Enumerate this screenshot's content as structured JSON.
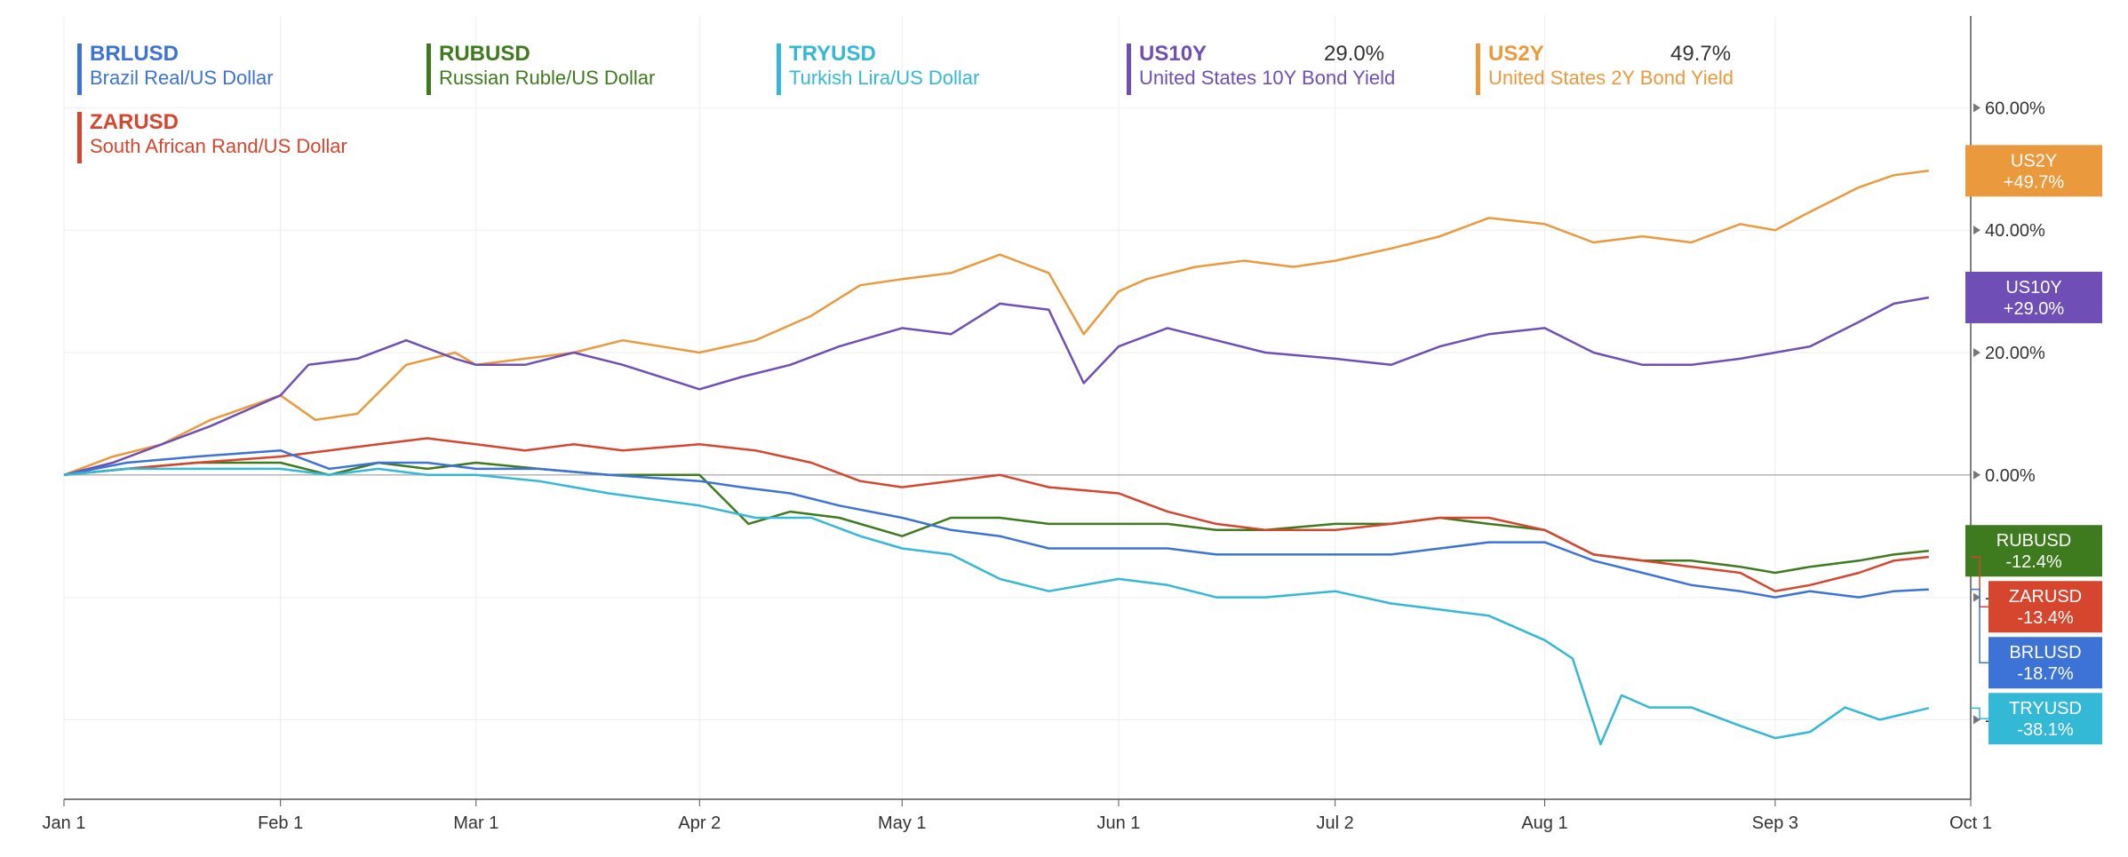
{
  "legend": [
    {
      "symbol": "BRLUSD",
      "description": "Brazil Real/US Dollar",
      "color": "#3d73d6",
      "value": ""
    },
    {
      "symbol": "RUBUSD",
      "description": "Russian Ruble/US Dollar",
      "color": "#3e7a1e",
      "value": ""
    },
    {
      "symbol": "TRYUSD",
      "description": "Turkish Lira/US Dollar",
      "color": "#33b8d6",
      "value": ""
    },
    {
      "symbol": "US10Y",
      "description": "United States 10Y Bond Yield",
      "color": "#6f4fb5",
      "value": "29.0%"
    },
    {
      "symbol": "US2Y",
      "description": "United States 2Y Bond Yield",
      "color": "#ea9a3c",
      "value": "49.7%"
    },
    {
      "symbol": "ZARUSD",
      "description": "South African Rand/US Dollar",
      "color": "#d6452e",
      "value": ""
    }
  ],
  "chart_data": {
    "type": "line",
    "x_ticks": [
      "Jan 1",
      "Feb 1",
      "Mar 1",
      "Apr 2",
      "May 1",
      "Jun 1",
      "Jul 2",
      "Aug 1",
      "Sep 3",
      "Oct 1"
    ],
    "y_ticks": [
      "60.00%",
      "40.00%",
      "20.00%",
      "0.00%",
      "-20.00%",
      "-40.00%"
    ],
    "ylim": [
      -53,
      75
    ],
    "grid": true,
    "series": [
      {
        "name": "US2Y",
        "color": "#ea9a3c",
        "end_label": "US2Y",
        "end_value": "+49.7%",
        "points": [
          [
            "Jan 1",
            0
          ],
          [
            "Jan 8",
            3
          ],
          [
            "Jan 15",
            5
          ],
          [
            "Jan 22",
            9
          ],
          [
            "Feb 1",
            13
          ],
          [
            "Feb 6",
            9
          ],
          [
            "Feb 12",
            10
          ],
          [
            "Feb 19",
            18
          ],
          [
            "Feb 26",
            20
          ],
          [
            "Mar 1",
            18
          ],
          [
            "Mar 8",
            19
          ],
          [
            "Mar 15",
            20
          ],
          [
            "Mar 22",
            22
          ],
          [
            "Apr 2",
            20
          ],
          [
            "Apr 10",
            22
          ],
          [
            "Apr 18",
            26
          ],
          [
            "Apr 25",
            31
          ],
          [
            "May 1",
            32
          ],
          [
            "May 8",
            33
          ],
          [
            "May 15",
            36
          ],
          [
            "May 22",
            33
          ],
          [
            "May 27",
            23
          ],
          [
            "Jun 1",
            30
          ],
          [
            "Jun 5",
            32
          ],
          [
            "Jun 12",
            34
          ],
          [
            "Jun 19",
            35
          ],
          [
            "Jun 26",
            34
          ],
          [
            "Jul 2",
            35
          ],
          [
            "Jul 10",
            37
          ],
          [
            "Jul 17",
            39
          ],
          [
            "Jul 24",
            42
          ],
          [
            "Aug 1",
            41
          ],
          [
            "Aug 8",
            38
          ],
          [
            "Aug 15",
            39
          ],
          [
            "Aug 22",
            38
          ],
          [
            "Aug 29",
            41
          ],
          [
            "Sep 3",
            40
          ],
          [
            "Sep 8",
            43
          ],
          [
            "Sep 15",
            47
          ],
          [
            "Sep 20",
            49
          ],
          [
            "Sep 25",
            49.7
          ]
        ]
      },
      {
        "name": "US10Y",
        "color": "#6f4fb5",
        "end_label": "US10Y",
        "end_value": "+29.0%",
        "points": [
          [
            "Jan 1",
            0
          ],
          [
            "Jan 8",
            2
          ],
          [
            "Jan 15",
            5
          ],
          [
            "Jan 22",
            8
          ],
          [
            "Feb 1",
            13
          ],
          [
            "Feb 5",
            18
          ],
          [
            "Feb 12",
            19
          ],
          [
            "Feb 19",
            22
          ],
          [
            "Feb 26",
            19
          ],
          [
            "Mar 1",
            18
          ],
          [
            "Mar 8",
            18
          ],
          [
            "Mar 15",
            20
          ],
          [
            "Mar 22",
            18
          ],
          [
            "Apr 2",
            14
          ],
          [
            "Apr 8",
            16
          ],
          [
            "Apr 15",
            18
          ],
          [
            "Apr 22",
            21
          ],
          [
            "May 1",
            24
          ],
          [
            "May 8",
            23
          ],
          [
            "May 15",
            28
          ],
          [
            "May 22",
            27
          ],
          [
            "May 27",
            15
          ],
          [
            "Jun 1",
            21
          ],
          [
            "Jun 8",
            24
          ],
          [
            "Jun 15",
            22
          ],
          [
            "Jun 22",
            20
          ],
          [
            "Jul 2",
            19
          ],
          [
            "Jul 10",
            18
          ],
          [
            "Jul 17",
            21
          ],
          [
            "Jul 24",
            23
          ],
          [
            "Aug 1",
            24
          ],
          [
            "Aug 8",
            20
          ],
          [
            "Aug 15",
            18
          ],
          [
            "Aug 22",
            18
          ],
          [
            "Aug 29",
            19
          ],
          [
            "Sep 3",
            20
          ],
          [
            "Sep 8",
            21
          ],
          [
            "Sep 15",
            25
          ],
          [
            "Sep 20",
            28
          ],
          [
            "Sep 25",
            29
          ]
        ]
      },
      {
        "name": "RUBUSD",
        "color": "#3e7a1e",
        "end_label": "RUBUSD",
        "end_value": "-12.4%",
        "points": [
          [
            "Jan 1",
            0
          ],
          [
            "Jan 10",
            1
          ],
          [
            "Jan 20",
            2
          ],
          [
            "Feb 1",
            2
          ],
          [
            "Feb 8",
            0
          ],
          [
            "Feb 15",
            2
          ],
          [
            "Feb 22",
            1
          ],
          [
            "Mar 1",
            2
          ],
          [
            "Mar 10",
            1
          ],
          [
            "Mar 20",
            0
          ],
          [
            "Apr 2",
            0
          ],
          [
            "Apr 9",
            -8
          ],
          [
            "Apr 15",
            -6
          ],
          [
            "Apr 22",
            -7
          ],
          [
            "May 1",
            -10
          ],
          [
            "May 8",
            -7
          ],
          [
            "May 15",
            -7
          ],
          [
            "May 22",
            -8
          ],
          [
            "Jun 1",
            -8
          ],
          [
            "Jun 8",
            -8
          ],
          [
            "Jun 15",
            -9
          ],
          [
            "Jun 22",
            -9
          ],
          [
            "Jul 2",
            -8
          ],
          [
            "Jul 10",
            -8
          ],
          [
            "Jul 17",
            -7
          ],
          [
            "Jul 24",
            -8
          ],
          [
            "Aug 1",
            -9
          ],
          [
            "Aug 8",
            -13
          ],
          [
            "Aug 15",
            -14
          ],
          [
            "Aug 22",
            -14
          ],
          [
            "Aug 29",
            -15
          ],
          [
            "Sep 3",
            -16
          ],
          [
            "Sep 8",
            -15
          ],
          [
            "Sep 15",
            -14
          ],
          [
            "Sep 20",
            -13
          ],
          [
            "Sep 25",
            -12.4
          ]
        ]
      },
      {
        "name": "ZARUSD",
        "color": "#d6452e",
        "end_label": "ZARUSD",
        "end_value": "-13.4%",
        "points": [
          [
            "Jan 1",
            0
          ],
          [
            "Jan 10",
            1
          ],
          [
            "Jan 20",
            2
          ],
          [
            "Feb 1",
            3
          ],
          [
            "Feb 8",
            4
          ],
          [
            "Feb 15",
            5
          ],
          [
            "Feb 22",
            6
          ],
          [
            "Mar 1",
            5
          ],
          [
            "Mar 8",
            4
          ],
          [
            "Mar 15",
            5
          ],
          [
            "Mar 22",
            4
          ],
          [
            "Apr 2",
            5
          ],
          [
            "Apr 10",
            4
          ],
          [
            "Apr 18",
            2
          ],
          [
            "Apr 25",
            -1
          ],
          [
            "May 1",
            -2
          ],
          [
            "May 8",
            -1
          ],
          [
            "May 15",
            0
          ],
          [
            "May 22",
            -2
          ],
          [
            "Jun 1",
            -3
          ],
          [
            "Jun 8",
            -6
          ],
          [
            "Jun 15",
            -8
          ],
          [
            "Jun 22",
            -9
          ],
          [
            "Jul 2",
            -9
          ],
          [
            "Jul 10",
            -8
          ],
          [
            "Jul 17",
            -7
          ],
          [
            "Jul 24",
            -7
          ],
          [
            "Aug 1",
            -9
          ],
          [
            "Aug 8",
            -13
          ],
          [
            "Aug 15",
            -14
          ],
          [
            "Aug 22",
            -15
          ],
          [
            "Aug 29",
            -16
          ],
          [
            "Sep 3",
            -19
          ],
          [
            "Sep 8",
            -18
          ],
          [
            "Sep 15",
            -16
          ],
          [
            "Sep 20",
            -14
          ],
          [
            "Sep 25",
            -13.4
          ]
        ]
      },
      {
        "name": "BRLUSD",
        "color": "#3d73d6",
        "end_label": "BRLUSD",
        "end_value": "-18.7%",
        "points": [
          [
            "Jan 1",
            0
          ],
          [
            "Jan 10",
            2
          ],
          [
            "Jan 20",
            3
          ],
          [
            "Feb 1",
            4
          ],
          [
            "Feb 8",
            1
          ],
          [
            "Feb 15",
            2
          ],
          [
            "Feb 22",
            2
          ],
          [
            "Mar 1",
            1
          ],
          [
            "Mar 10",
            1
          ],
          [
            "Mar 20",
            0
          ],
          [
            "Apr 2",
            -1
          ],
          [
            "Apr 8",
            -2
          ],
          [
            "Apr 15",
            -3
          ],
          [
            "Apr 22",
            -5
          ],
          [
            "May 1",
            -7
          ],
          [
            "May 8",
            -9
          ],
          [
            "May 15",
            -10
          ],
          [
            "May 22",
            -12
          ],
          [
            "Jun 1",
            -12
          ],
          [
            "Jun 8",
            -12
          ],
          [
            "Jun 15",
            -13
          ],
          [
            "Jun 22",
            -13
          ],
          [
            "Jul 2",
            -13
          ],
          [
            "Jul 10",
            -13
          ],
          [
            "Jul 17",
            -12
          ],
          [
            "Jul 24",
            -11
          ],
          [
            "Aug 1",
            -11
          ],
          [
            "Aug 8",
            -14
          ],
          [
            "Aug 15",
            -16
          ],
          [
            "Aug 22",
            -18
          ],
          [
            "Aug 29",
            -19
          ],
          [
            "Sep 3",
            -20
          ],
          [
            "Sep 8",
            -19
          ],
          [
            "Sep 15",
            -20
          ],
          [
            "Sep 20",
            -19
          ],
          [
            "Sep 25",
            -18.7
          ]
        ]
      },
      {
        "name": "TRYUSD",
        "color": "#33b8d6",
        "end_label": "TRYUSD",
        "end_value": "-38.1%",
        "points": [
          [
            "Jan 1",
            0
          ],
          [
            "Jan 10",
            1
          ],
          [
            "Jan 20",
            1
          ],
          [
            "Feb 1",
            1
          ],
          [
            "Feb 8",
            0
          ],
          [
            "Feb 15",
            1
          ],
          [
            "Feb 22",
            0
          ],
          [
            "Mar 1",
            0
          ],
          [
            "Mar 10",
            -1
          ],
          [
            "Mar 20",
            -3
          ],
          [
            "Apr 2",
            -5
          ],
          [
            "Apr 10",
            -7
          ],
          [
            "Apr 18",
            -7
          ],
          [
            "Apr 25",
            -10
          ],
          [
            "May 1",
            -12
          ],
          [
            "May 8",
            -13
          ],
          [
            "May 15",
            -17
          ],
          [
            "May 22",
            -19
          ],
          [
            "Jun 1",
            -17
          ],
          [
            "Jun 8",
            -18
          ],
          [
            "Jun 15",
            -20
          ],
          [
            "Jun 22",
            -20
          ],
          [
            "Jul 2",
            -19
          ],
          [
            "Jul 10",
            -21
          ],
          [
            "Jul 17",
            -22
          ],
          [
            "Jul 24",
            -23
          ],
          [
            "Aug 1",
            -27
          ],
          [
            "Aug 5",
            -30
          ],
          [
            "Aug 9",
            -44
          ],
          [
            "Aug 12",
            -36
          ],
          [
            "Aug 16",
            -38
          ],
          [
            "Aug 22",
            -38
          ],
          [
            "Aug 29",
            -41
          ],
          [
            "Sep 3",
            -43
          ],
          [
            "Sep 8",
            -42
          ],
          [
            "Sep 13",
            -38
          ],
          [
            "Sep 18",
            -40
          ],
          [
            "Sep 25",
            -38.1
          ]
        ]
      }
    ]
  }
}
